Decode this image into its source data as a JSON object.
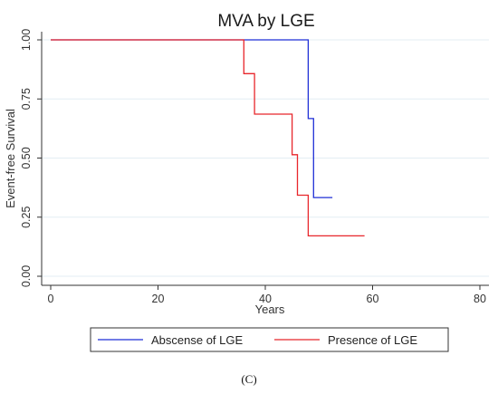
{
  "chart_data": {
    "type": "line",
    "step": true,
    "title": "MVA by LGE",
    "xlabel": "Years",
    "ylabel": "Event-free Survival",
    "xlim": [
      0,
      80
    ],
    "ylim": [
      0,
      1
    ],
    "xticks": [
      0,
      20,
      40,
      60,
      80
    ],
    "xtick_labels": [
      "0",
      "20",
      "40",
      "60",
      "80"
    ],
    "yticks": [
      0,
      0.25,
      0.5,
      0.75,
      1.0
    ],
    "ytick_labels": [
      "0.00",
      "0.25",
      "0.50",
      "0.75",
      "1.00"
    ],
    "grid": "horizontal",
    "legend_position": "bottom",
    "series": [
      {
        "name": "Abscense of LGE",
        "color": "#1f2fd6",
        "x": [
          0,
          48,
          48,
          49,
          49,
          52.5
        ],
        "y": [
          1.0,
          1.0,
          0.667,
          0.667,
          0.333,
          0.333
        ]
      },
      {
        "name": "Presence of LGE",
        "color": "#e8262b",
        "x": [
          0,
          36,
          36,
          38,
          38,
          45,
          45,
          46,
          46,
          48,
          48,
          58.5
        ],
        "y": [
          1.0,
          1.0,
          0.857,
          0.857,
          0.686,
          0.686,
          0.514,
          0.514,
          0.343,
          0.343,
          0.171,
          0.171
        ]
      }
    ]
  },
  "caption": "(C)"
}
